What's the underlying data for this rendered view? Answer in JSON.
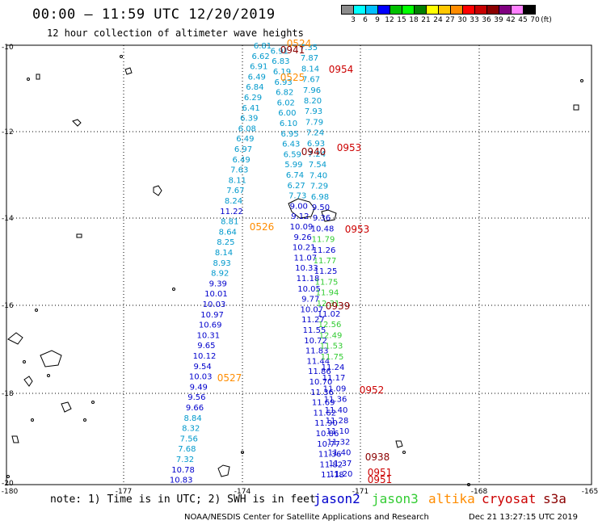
{
  "header": {
    "title": "00:00 – 11:59 UTC 12/20/2019",
    "subtitle": "12 hour collection of altimeter wave heights"
  },
  "legend": {
    "unit_label": "(ft)",
    "ticks": [
      "3",
      "6",
      "9",
      "12",
      "15",
      "18",
      "21",
      "24",
      "27",
      "30",
      "33",
      "36",
      "39",
      "42",
      "45",
      "70"
    ],
    "colors": [
      "#8c8c8c",
      "#00ffff",
      "#00bfff",
      "#0000ff",
      "#00c000",
      "#00ff00",
      "#008000",
      "#ffff00",
      "#ffc800",
      "#ff8c00",
      "#ff0000",
      "#c80000",
      "#8b0000",
      "#800080",
      "#ff80ff",
      "#000000"
    ]
  },
  "axes": {
    "lon_labels": [
      "-180",
      "-177",
      "-174",
      "-171",
      "-168",
      "-165"
    ],
    "lat_labels": [
      "-10",
      "-12",
      "-14",
      "-16",
      "-18",
      "-20"
    ]
  },
  "colors": {
    "jason2": "#0000cc",
    "jason3": "#33cc33",
    "altika": "#ff8c00",
    "cryosat": "#cc0000",
    "s3a": "#8b0000",
    "cyan": "#0099cc"
  },
  "track_a": [
    "6.81",
    "6.91",
    "6.62",
    "6.83",
    "6.91",
    "6.19",
    "6.49",
    "6.93",
    "6.84",
    "6.82",
    "6.29",
    "6.02",
    "6.41",
    "6.00",
    "6.39",
    "6.10",
    "6.08",
    "6.95",
    "6.49",
    "6.43",
    "6.97",
    "6.59",
    "6.49",
    "5.99",
    "7.63",
    "6.74",
    "8.11",
    "6.27",
    "7.67",
    "7.73",
    "8.24",
    "9.00",
    "11.22",
    "9.12",
    "8.81",
    "10.09",
    "8.64",
    "9.26",
    "8.25",
    "10.21",
    "8.14",
    "11.07",
    "8.93",
    "10.33",
    "8.92",
    "11.18",
    "9.39",
    "10.05",
    "10.01",
    "9.77",
    "10.03",
    "10.07",
    "10.97",
    "11.27",
    "10.69",
    "11.55",
    "10.31",
    "10.72",
    "9.65",
    "11.83",
    "10.12",
    "11.44",
    "9.54",
    "11.86",
    "10.03",
    "10.70",
    "9.49",
    "11.36",
    "9.56",
    "11.69",
    "9.66",
    "11.62",
    "8.84",
    "11.90",
    "8.32",
    "10.86",
    "7.56",
    "10.77",
    "7.68",
    "11.36",
    "7.32",
    "11.82",
    "10.78",
    "11.18",
    "10.83"
  ],
  "track_b": [
    "7.35",
    "7.87",
    "8.14",
    "7.67",
    "7.96",
    "8.20",
    "7.93",
    "7.79",
    "7.24",
    "6.93",
    "7.24",
    "7.54",
    "7.40",
    "7.29",
    "6.98",
    "9.50",
    "9.36",
    "10.48",
    "11.79",
    "11.26",
    "11.77",
    "11.25",
    "11.75",
    "11.94",
    "12.31",
    "11.02",
    "12.56",
    "12.49",
    "11.53",
    "11.75",
    "11.24",
    "11.17",
    "11.09",
    "11.36",
    "11.40",
    "11.28",
    "11.10",
    "11.32",
    "11.40",
    "11.37",
    "11.20"
  ],
  "time_labels": [
    {
      "t": "0524",
      "sat": "altika"
    },
    {
      "t": "0941",
      "sat": "s3a"
    },
    {
      "t": "0954",
      "sat": "cryosat"
    },
    {
      "t": "0525",
      "sat": "altika"
    },
    {
      "t": "0940",
      "sat": "s3a"
    },
    {
      "t": "0953",
      "sat": "cryosat"
    },
    {
      "t": "0526",
      "sat": "altika"
    },
    {
      "t": "0953",
      "sat": "cryosat"
    },
    {
      "t": "0939",
      "sat": "s3a"
    },
    {
      "t": "0527",
      "sat": "altika"
    },
    {
      "t": "0952",
      "sat": "cryosat"
    },
    {
      "t": "0938",
      "sat": "s3a"
    },
    {
      "t": "0951",
      "sat": "cryosat"
    },
    {
      "t": "0951",
      "sat": "cryosat"
    }
  ],
  "footer": {
    "note": "note: 1) Time is in UTC; 2) SWH is in feet",
    "sats": [
      "jason2",
      "jason3",
      "altika",
      "cryosat",
      "s3a"
    ],
    "credit": "NOAA/NESDIS Center for Satellite Applications and Research",
    "timestamp": "Dec 21 13:27:15 UTC 2019"
  }
}
